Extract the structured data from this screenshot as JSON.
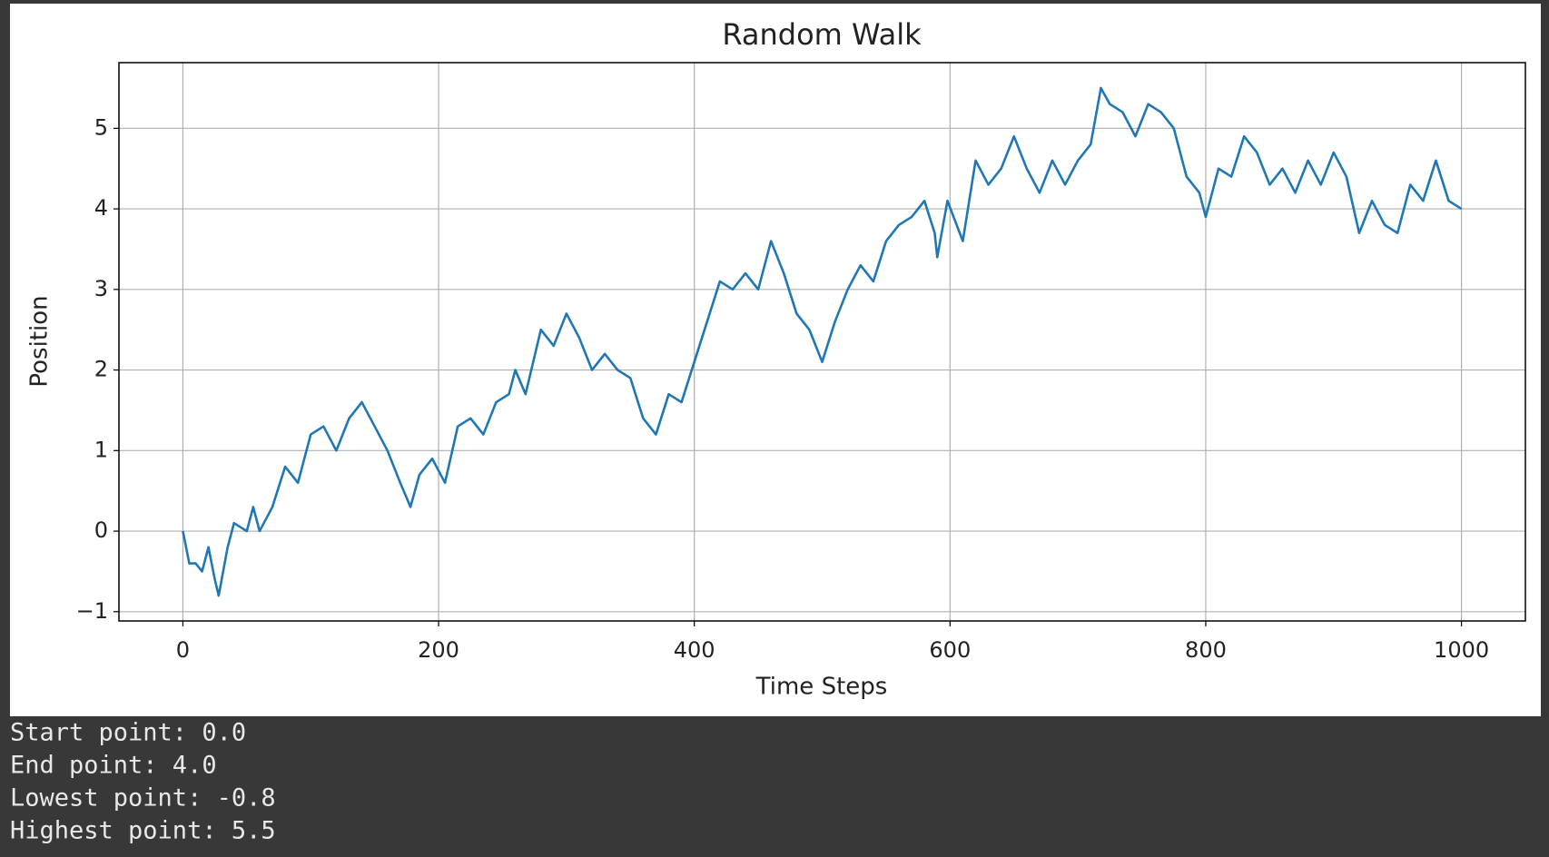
{
  "chart_data": {
    "type": "line",
    "title": "Random Walk",
    "x_label": "Time Steps",
    "y_label": "Position",
    "x": [
      0,
      5,
      10,
      15,
      20,
      25,
      28,
      35,
      40,
      50,
      55,
      60,
      70,
      80,
      90,
      100,
      110,
      120,
      130,
      140,
      150,
      160,
      170,
      178,
      185,
      195,
      205,
      215,
      225,
      235,
      245,
      255,
      260,
      268,
      280,
      290,
      300,
      310,
      320,
      330,
      340,
      350,
      360,
      370,
      380,
      390,
      400,
      410,
      420,
      430,
      440,
      450,
      460,
      470,
      480,
      490,
      500,
      510,
      520,
      530,
      540,
      550,
      560,
      570,
      580,
      588,
      590,
      598,
      610,
      620,
      630,
      640,
      650,
      660,
      670,
      680,
      690,
      700,
      710,
      718,
      725,
      735,
      745,
      755,
      765,
      775,
      785,
      795,
      800,
      810,
      820,
      830,
      840,
      850,
      860,
      870,
      880,
      890,
      900,
      910,
      920,
      930,
      940,
      950,
      960,
      970,
      980,
      990,
      1000
    ],
    "series": [
      {
        "name": "Position",
        "color": "#1f77b4",
        "values": [
          0.0,
          -0.4,
          -0.4,
          -0.5,
          -0.2,
          -0.6,
          -0.8,
          -0.2,
          0.1,
          0.0,
          0.3,
          0.0,
          0.3,
          0.8,
          0.6,
          1.2,
          1.3,
          1.0,
          1.4,
          1.6,
          1.3,
          1.0,
          0.6,
          0.3,
          0.7,
          0.9,
          0.6,
          1.3,
          1.4,
          1.2,
          1.6,
          1.7,
          2.0,
          1.7,
          2.5,
          2.3,
          2.7,
          2.4,
          2.0,
          2.2,
          2.0,
          1.9,
          1.4,
          1.2,
          1.7,
          1.6,
          2.1,
          2.6,
          3.1,
          3.0,
          3.2,
          3.0,
          3.6,
          3.2,
          2.7,
          2.5,
          2.1,
          2.6,
          3.0,
          3.3,
          3.1,
          3.6,
          3.8,
          3.9,
          4.1,
          3.7,
          3.4,
          4.1,
          3.6,
          4.6,
          4.3,
          4.5,
          4.9,
          4.5,
          4.2,
          4.6,
          4.3,
          4.6,
          4.8,
          5.5,
          5.3,
          5.2,
          4.9,
          5.3,
          5.2,
          5.0,
          4.4,
          4.2,
          3.9,
          4.5,
          4.4,
          4.9,
          4.7,
          4.3,
          4.5,
          4.2,
          4.6,
          4.3,
          4.7,
          4.4,
          3.7,
          4.1,
          3.8,
          3.7,
          4.3,
          4.1,
          4.6,
          4.1,
          4.0
        ]
      }
    ],
    "xlim": [
      -50,
      1050
    ],
    "ylim": [
      -1.115,
      5.815
    ],
    "xticks": [
      0,
      200,
      400,
      600,
      800,
      1000
    ],
    "yticks": [
      {
        "value": -1,
        "label": "−1"
      },
      0,
      1,
      2,
      3,
      4,
      5
    ],
    "grid": true
  },
  "output": {
    "lines": [
      "Start point: 0.0",
      "End point: 4.0",
      "Lowest point: -0.8",
      "Highest point: 5.5"
    ]
  }
}
